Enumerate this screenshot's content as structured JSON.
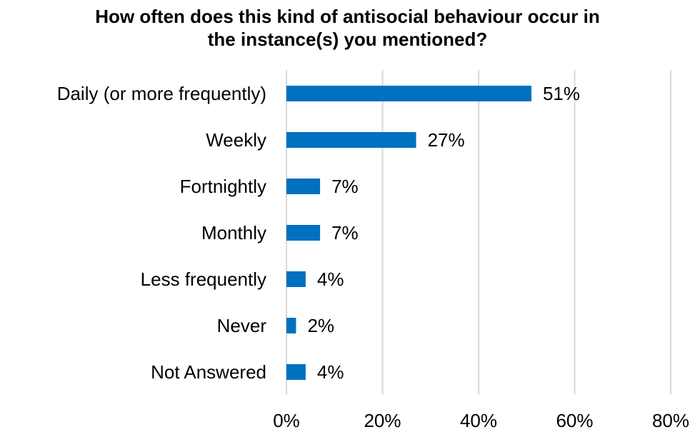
{
  "chart_data": {
    "type": "bar",
    "orientation": "horizontal",
    "title_lines": [
      "How often does this kind of antisocial behaviour occur in",
      "the instance(s) you mentioned?"
    ],
    "categories": [
      "Daily (or more frequently)",
      "Weekly",
      "Fortnightly",
      "Monthly",
      "Less frequently",
      "Never",
      "Not Answered"
    ],
    "values": [
      51,
      27,
      7,
      7,
      4,
      2,
      4
    ],
    "value_labels": [
      "51%",
      "27%",
      "7%",
      "7%",
      "4%",
      "2%",
      "4%"
    ],
    "x_ticks": [
      0,
      20,
      40,
      60,
      80
    ],
    "x_tick_labels": [
      "0%",
      "20%",
      "40%",
      "60%",
      "80%"
    ],
    "xlim": [
      0,
      80
    ],
    "unit": "%",
    "grid": "vertical",
    "legend": "none",
    "bar_color": "#0070C0",
    "grid_color": "#D9D9D9"
  }
}
